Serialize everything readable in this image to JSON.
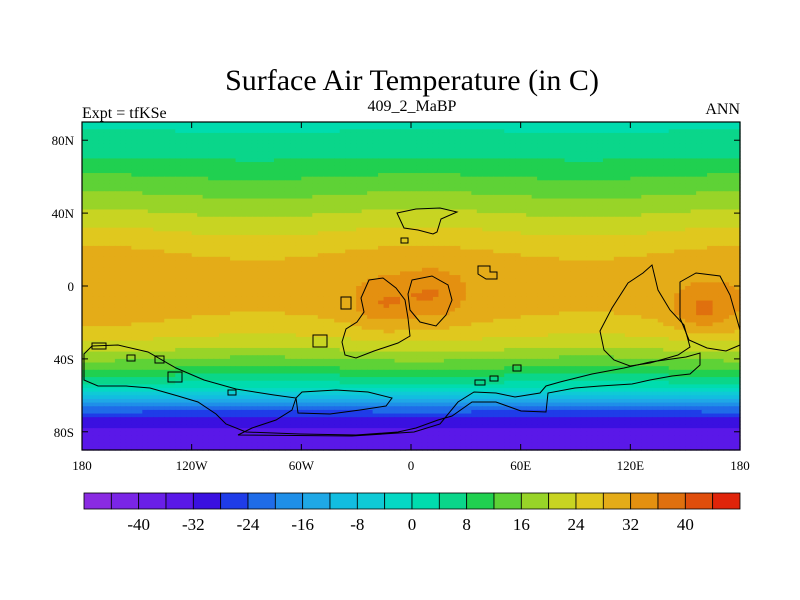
{
  "chart_data": {
    "type": "heatmap",
    "title": "Surface Air Temperature (in C)",
    "left_label": "Expt = tfKSe",
    "center_label": "409_2_MaBP",
    "right_label": "ANN",
    "x_axis": {
      "range": [
        -180,
        180
      ],
      "ticks": [
        -180,
        -120,
        -60,
        0,
        60,
        120,
        180
      ],
      "tick_labels": [
        "180",
        "120W",
        "60W",
        "0",
        "60E",
        "120E",
        "180"
      ]
    },
    "y_axis": {
      "range": [
        -90,
        90
      ],
      "ticks": [
        80,
        40,
        0,
        -40,
        -80
      ],
      "tick_labels": [
        "80N",
        "40N",
        "0",
        "40S",
        "80S"
      ]
    },
    "zonal_mean_profile": {
      "lat": [
        -90,
        -80,
        -70,
        -62,
        -55,
        -45,
        -35,
        -25,
        -15,
        -5,
        5,
        15,
        25,
        35,
        45,
        55,
        65,
        75,
        85,
        90
      ],
      "temp": [
        -36,
        -34,
        -26,
        -12,
        2,
        12,
        20,
        26,
        29,
        30,
        30,
        29,
        26,
        22,
        18,
        14,
        10,
        6,
        4,
        3
      ]
    },
    "hotspots": [
      {
        "lon": -15,
        "lat": -10,
        "peak": 35
      },
      {
        "lon": 12,
        "lat": -5,
        "peak": 35
      },
      {
        "lon": 160,
        "lat": -13,
        "peak": 36
      }
    ],
    "colorbar": {
      "levels": [
        -48,
        -44,
        -40,
        -36,
        -32,
        -28,
        -24,
        -20,
        -16,
        -12,
        -8,
        -4,
        0,
        4,
        8,
        12,
        16,
        20,
        24,
        28,
        32,
        36,
        40,
        44
      ],
      "tick_values": [
        -40,
        -32,
        -24,
        -16,
        -8,
        0,
        8,
        16,
        24,
        32,
        40
      ],
      "tick_labels": [
        "-40",
        "-32",
        "-24",
        "-16",
        "-8",
        "0",
        "8",
        "16",
        "24",
        "32",
        "40"
      ],
      "colors": [
        "#8a2be2",
        "#7a25e6",
        "#6a1fe8",
        "#5a18e8",
        "#3a10e0",
        "#1f3ce8",
        "#1f6ce8",
        "#1f8fe8",
        "#1fa8e6",
        "#12bde0",
        "#0fcad6",
        "#05d8c4",
        "#00dcae",
        "#0ad68a",
        "#20d050",
        "#5ed236",
        "#98d428",
        "#c8d422",
        "#e0c81e",
        "#e4ac18",
        "#e49010",
        "#e0700e",
        "#e04e0c",
        "#e0240a"
      ]
    }
  }
}
